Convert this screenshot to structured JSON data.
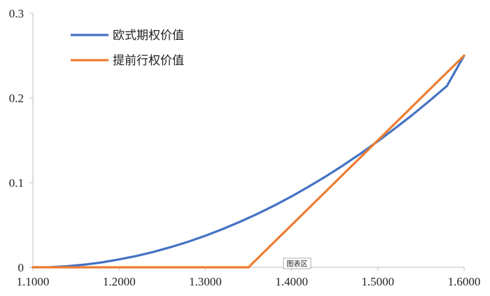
{
  "chart_data": {
    "type": "line",
    "title": "",
    "xlabel": "",
    "ylabel": "",
    "xlim": [
      1.1,
      1.6
    ],
    "ylim": [
      0,
      0.3
    ],
    "x_ticks": [
      "1.1000",
      "1.2000",
      "1.3000",
      "1.4000",
      "1.5000",
      "1.6000"
    ],
    "y_ticks": [
      "0",
      "0.1",
      "0.2",
      "0.3"
    ],
    "grid": false,
    "legend_position": "top-left",
    "series": [
      {
        "name": "欧式期权价值",
        "color": "#4472C4",
        "x": [
          1.1,
          1.12,
          1.14,
          1.16,
          1.18,
          1.2,
          1.22,
          1.24,
          1.26,
          1.28,
          1.3,
          1.32,
          1.34,
          1.36,
          1.38,
          1.4,
          1.42,
          1.44,
          1.46,
          1.48,
          1.5,
          1.52,
          1.54,
          1.56,
          1.58,
          1.6
        ],
        "values": [
          0.0,
          0.0002,
          0.0013,
          0.0032,
          0.0058,
          0.0093,
          0.0134,
          0.0183,
          0.0239,
          0.0302,
          0.0373,
          0.0451,
          0.0537,
          0.063,
          0.073,
          0.0838,
          0.0954,
          0.1076,
          0.1206,
          0.1344,
          0.1489,
          0.1641,
          0.18,
          0.1967,
          0.2141,
          0.25
        ]
      },
      {
        "name": "提前行权价值",
        "color": "#ED7D31",
        "x": [
          1.1,
          1.35,
          1.6
        ],
        "values": [
          0,
          0,
          0.25
        ]
      }
    ]
  },
  "tooltip": {
    "label": "图表区"
  }
}
